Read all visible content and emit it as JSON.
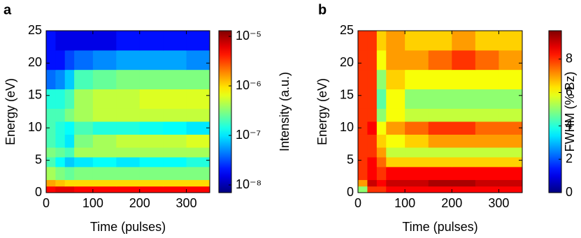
{
  "chart_data": [
    {
      "type": "heatmap",
      "panel_label": "a",
      "x_label": "Time (pulses)",
      "y_label": "Energy (eV)",
      "xlim": [
        0,
        350
      ],
      "ylim": [
        0,
        25
      ],
      "xticks": [
        0,
        100,
        200,
        300
      ],
      "yticks": [
        0,
        5,
        10,
        15,
        20,
        25
      ],
      "x_edges": [
        0,
        20,
        40,
        60,
        100,
        150,
        200,
        250,
        300,
        350
      ],
      "y_edges": [
        0,
        1,
        2,
        4,
        5.5,
        7,
        9,
        11,
        13,
        16,
        19,
        22,
        25
      ],
      "values": [
        [
          5e-06,
          6e-06,
          6e-06,
          5e-06,
          5e-06,
          5e-06,
          5e-06,
          5e-06,
          5e-06
        ],
        [
          1.5e-06,
          1.2e-06,
          1e-06,
          1e-06,
          1e-06,
          1e-06,
          1e-06,
          1e-06,
          1e-06
        ],
        [
          4e-07,
          3e-07,
          2.5e-07,
          3e-07,
          3e-07,
          3e-07,
          3e-07,
          3e-07,
          3e-07
        ],
        [
          2e-07,
          1.2e-07,
          8e-08,
          1e-07,
          1.2e-07,
          1e-07,
          1.2e-07,
          1.2e-07,
          1.5e-07
        ],
        [
          3e-07,
          2.5e-07,
          2e-07,
          4e-07,
          4e-07,
          4e-07,
          4e-07,
          4e-07,
          4e-07
        ],
        [
          2e-07,
          1.5e-07,
          1e-07,
          3e-07,
          4e-07,
          5e-07,
          5e-07,
          5e-07,
          6e-07
        ],
        [
          2e-07,
          1.5e-07,
          1.2e-07,
          2e-07,
          1.5e-07,
          1.5e-07,
          1.3e-07,
          1.2e-07,
          1e-07
        ],
        [
          2e-07,
          2e-07,
          3e-07,
          4e-07,
          5e-07,
          5e-07,
          5e-07,
          5e-07,
          5e-07
        ],
        [
          1.5e-07,
          1.5e-07,
          2e-07,
          4e-07,
          5e-07,
          5e-07,
          6e-07,
          6e-07,
          6e-07
        ],
        [
          4e-08,
          5e-08,
          8e-08,
          2e-07,
          2.5e-07,
          3e-07,
          3e-07,
          3e-07,
          3e-07
        ],
        [
          2e-08,
          2e-08,
          3e-08,
          4e-08,
          5e-08,
          6e-08,
          6e-08,
          6e-08,
          5e-08
        ],
        [
          2e-08,
          1.5e-08,
          1.5e-08,
          1.5e-08,
          1.5e-08,
          2e-08,
          2e-08,
          2e-08,
          2e-08
        ]
      ],
      "colormap": "jet",
      "colorbar": {
        "label": "Intensity (a.u.)",
        "scale": "log",
        "lim": [
          7e-09,
          1.3e-05
        ],
        "ticks": [
          {
            "value": 1e-08,
            "label": "10⁻⁸"
          },
          {
            "value": 1e-07,
            "label": "10⁻⁷"
          },
          {
            "value": 1e-06,
            "label": "10⁻⁶"
          },
          {
            "value": 1e-05,
            "label": "10⁻⁵"
          }
        ]
      }
    },
    {
      "type": "heatmap",
      "panel_label": "b",
      "x_label": "Time (pulses)",
      "y_label": "Energy (eV)",
      "xlim": [
        0,
        350
      ],
      "ylim": [
        0,
        25
      ],
      "xticks": [
        0,
        100,
        200,
        300
      ],
      "yticks": [
        0,
        5,
        10,
        15,
        20,
        25
      ],
      "x_edges": [
        0,
        20,
        40,
        60,
        100,
        150,
        200,
        250,
        300,
        350
      ],
      "y_edges": [
        0,
        1,
        2,
        4,
        5.5,
        7,
        9,
        11,
        13,
        16,
        19,
        22,
        25
      ],
      "values": [
        [
          5,
          8,
          8,
          8.5,
          8.5,
          8.5,
          8.5,
          8.5,
          8.5
        ],
        [
          7,
          9,
          8.5,
          9,
          9,
          9.3,
          9.3,
          9,
          9
        ],
        [
          8,
          8.5,
          8,
          8.5,
          8.5,
          8.5,
          8.5,
          8.5,
          8.5
        ],
        [
          8,
          8.5,
          7.5,
          6.5,
          6.5,
          6.5,
          6.5,
          6.5,
          6.5
        ],
        [
          8,
          8,
          7,
          5.5,
          5.5,
          5.5,
          5.5,
          5.5,
          5.5
        ],
        [
          8,
          8,
          6.5,
          6,
          6.5,
          7,
          7,
          7,
          7
        ],
        [
          8,
          8.5,
          6,
          7,
          7.5,
          8,
          8,
          7.5,
          7.5
        ],
        [
          8,
          8,
          5,
          6,
          5.5,
          5.5,
          5.5,
          5.5,
          5.5
        ],
        [
          8,
          8,
          4.5,
          6,
          5,
          5,
          5,
          5,
          5
        ],
        [
          8,
          8,
          5,
          6.5,
          6,
          6,
          6,
          6,
          6
        ],
        [
          8,
          8,
          6,
          7,
          7,
          7.5,
          8,
          7.5,
          7
        ],
        [
          8,
          8,
          6.5,
          7,
          6.5,
          6.5,
          7,
          6.5,
          6.5
        ]
      ],
      "colormap": "jet",
      "colorbar": {
        "label": "FWHM (% Bz)",
        "scale": "linear",
        "lim": [
          0,
          9.7
        ],
        "ticks": [
          0,
          2,
          4,
          6,
          8
        ]
      }
    }
  ]
}
